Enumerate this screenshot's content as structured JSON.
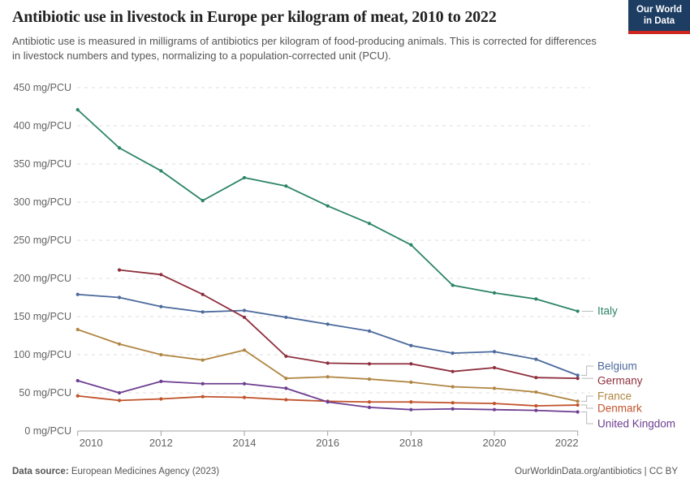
{
  "header": {
    "title": "Antibiotic use in livestock in Europe per kilogram of meat, 2010 to 2022",
    "subtitle": "Antibiotic use is measured in milligrams of antibiotics per kilogram of food-producing animals. This is corrected for differences in livestock numbers and types, normalizing to a population-corrected unit (PCU).",
    "logo": {
      "line1": "Our World",
      "line2": "in Data",
      "bg_color": "#1D3D63",
      "bar_color": "#CE261E"
    }
  },
  "chart_data": {
    "type": "line",
    "title": "Antibiotic use in livestock in Europe per kilogram of meat, 2010 to 2022",
    "unit": "mg/PCU",
    "ylabel": "mg/PCU",
    "xlabel": "",
    "grid": "horizontal-dashed",
    "legend_position": "right-of-lines",
    "x": [
      2010,
      2011,
      2012,
      2013,
      2014,
      2015,
      2016,
      2017,
      2018,
      2019,
      2020,
      2021,
      2022
    ],
    "xticks": [
      2010,
      2012,
      2014,
      2016,
      2018,
      2020,
      2022
    ],
    "yticks": [
      0,
      50,
      100,
      150,
      200,
      250,
      300,
      350,
      400,
      450
    ],
    "ylim": [
      0,
      450
    ],
    "series": [
      {
        "name": "Italy",
        "color": "#2C8465",
        "values": [
          421,
          371,
          341,
          302,
          332,
          321,
          295,
          272,
          244,
          191,
          181,
          173,
          157
        ]
      },
      {
        "name": "Belgium",
        "color": "#4C6A9C",
        "values": [
          179,
          175,
          163,
          156,
          158,
          149,
          140,
          131,
          112,
          102,
          104,
          94,
          73
        ]
      },
      {
        "name": "Germany",
        "color": "#8E2F3D",
        "values": [
          null,
          211,
          205,
          179,
          149,
          98,
          89,
          88,
          88,
          78,
          83,
          70,
          69
        ]
      },
      {
        "name": "France",
        "color": "#B08642",
        "values": [
          133,
          114,
          100,
          93,
          106,
          69,
          71,
          68,
          64,
          58,
          56,
          51,
          39
        ]
      },
      {
        "name": "Denmark",
        "color": "#C1532B",
        "values": [
          46,
          40,
          42,
          45,
          44,
          41,
          39,
          38,
          38,
          37,
          36,
          33,
          34
        ]
      },
      {
        "name": "United Kingdom",
        "color": "#6D3E91",
        "values": [
          66,
          50,
          65,
          62,
          62,
          56,
          38,
          31,
          28,
          29,
          28,
          27,
          25
        ]
      }
    ]
  },
  "footer": {
    "source_label": "Data source:",
    "source_text": " European Medicines Agency (2023)",
    "credit_link": "OurWorldinData.org/antibiotics",
    "credit_suffix": " | CC BY"
  }
}
